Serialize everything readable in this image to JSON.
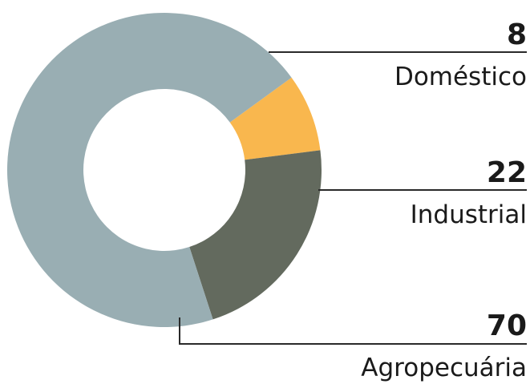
{
  "chart_data": {
    "type": "pie",
    "variant": "donut",
    "title": "",
    "legend": "none",
    "slices": [
      {
        "label": "Doméstico",
        "value": 8,
        "value_label": "8",
        "color": "#f9b74e"
      },
      {
        "label": "Industrial",
        "value": 22,
        "value_label": "22",
        "color": "#636a5e"
      },
      {
        "label": "Agropecuária",
        "value": 70,
        "value_label": "70",
        "color": "#99aeb3"
      }
    ]
  }
}
